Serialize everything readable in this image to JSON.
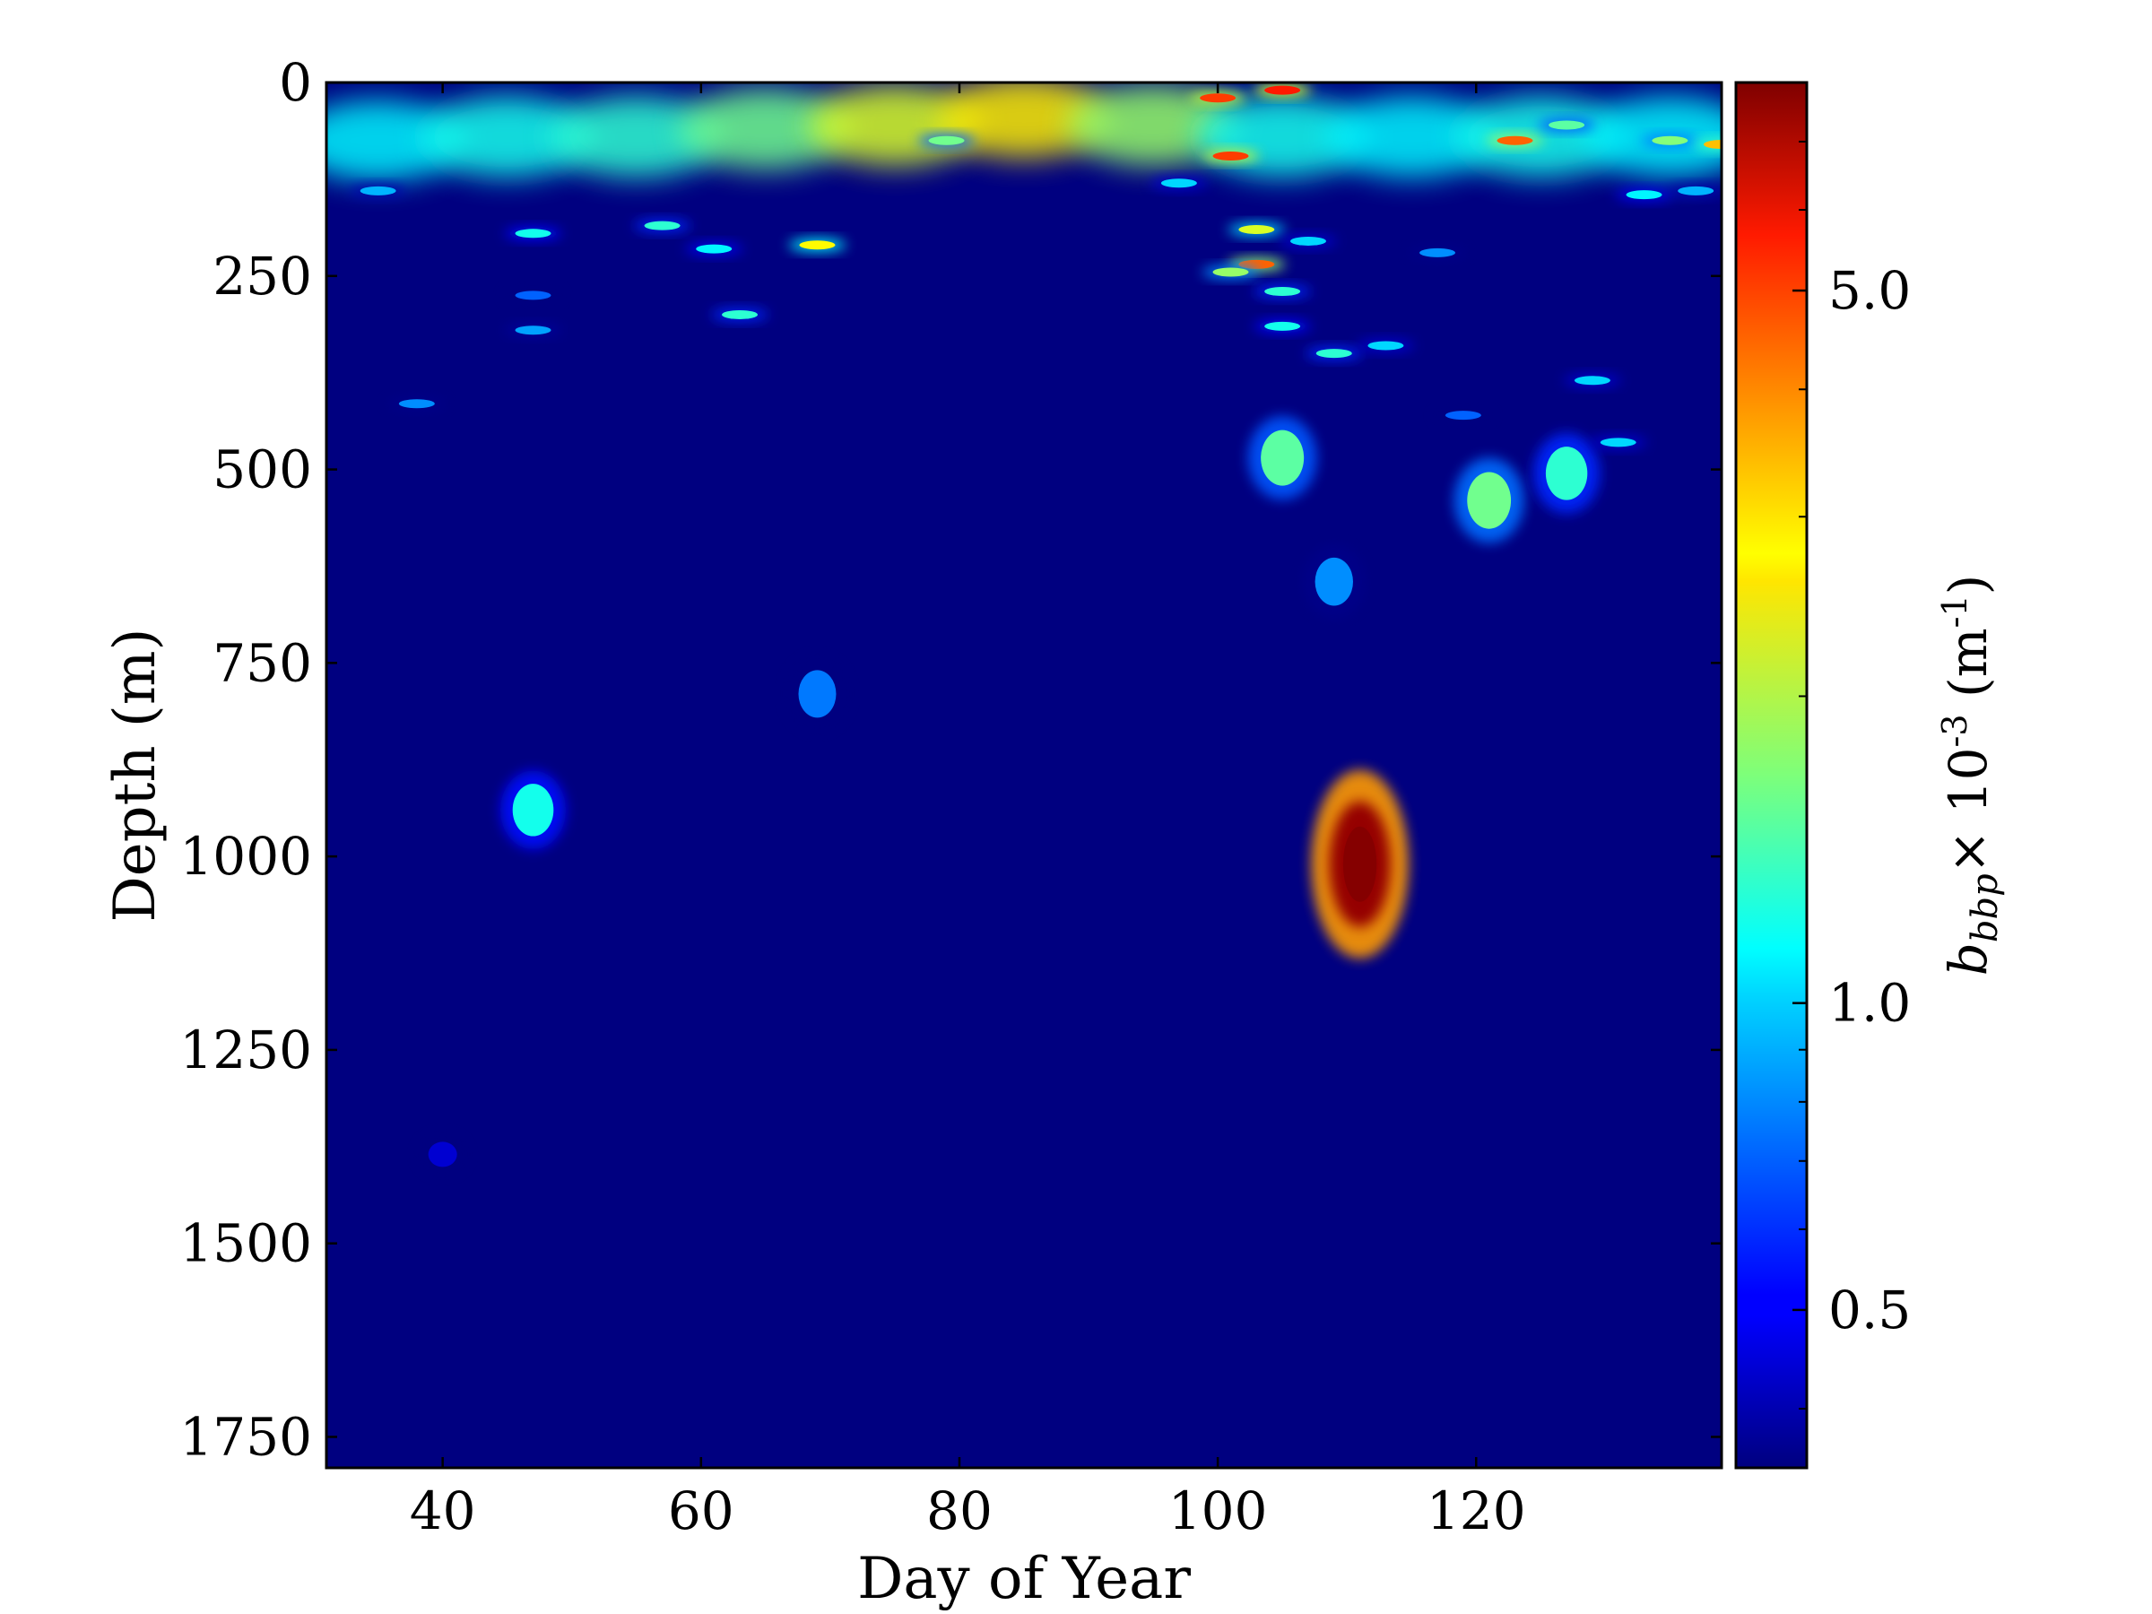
{
  "chart_data": {
    "type": "heatmap",
    "title": "",
    "xlabel": "Day of Year",
    "ylabel": "Depth (m)",
    "xlim": [
      31,
      139
    ],
    "ylim": [
      1790,
      0
    ],
    "y_inverted": true,
    "xticks": [
      40,
      60,
      80,
      100,
      120
    ],
    "xtick_labels": [
      "40",
      "60",
      "80",
      "100",
      "120"
    ],
    "yticks": [
      0,
      250,
      500,
      750,
      1000,
      1250,
      1500,
      1750
    ],
    "ytick_labels": [
      "0",
      "250",
      "500",
      "750",
      "1000",
      "1250",
      "1500",
      "1750"
    ],
    "colormap": "jet",
    "background_value": 0.35,
    "colorbar": {
      "label_parts": {
        "symbol": "b",
        "subscript": "bbp",
        "times": "× 10",
        "exponent": "-3",
        "unit_open": " (m",
        "unit_exponent": "-1",
        "unit_close": ")"
      },
      "scale": "log",
      "range": [
        0.35,
        8.0
      ],
      "ticks": [
        0.5,
        1.0,
        5.0
      ],
      "tick_labels": [
        "0.5",
        "1.0",
        "5.0"
      ],
      "minor_ticks": [
        0.4,
        0.6,
        0.7,
        0.8,
        0.9,
        2,
        3,
        4,
        6,
        7,
        8
      ]
    },
    "surface_layer": [
      {
        "day": 35,
        "depth": 75,
        "value": 1.1
      },
      {
        "day": 45,
        "depth": 70,
        "value": 1.2
      },
      {
        "day": 55,
        "depth": 70,
        "value": 1.3
      },
      {
        "day": 65,
        "depth": 60,
        "value": 1.6
      },
      {
        "day": 75,
        "depth": 55,
        "value": 2.2
      },
      {
        "day": 85,
        "depth": 45,
        "value": 2.6
      },
      {
        "day": 95,
        "depth": 55,
        "value": 1.8
      },
      {
        "day": 105,
        "depth": 70,
        "value": 1.2
      },
      {
        "day": 115,
        "depth": 70,
        "value": 1.1
      },
      {
        "day": 125,
        "depth": 70,
        "value": 1.2
      },
      {
        "day": 135,
        "depth": 70,
        "value": 1.1
      }
    ],
    "patches": [
      {
        "day": 111,
        "depth": 1010,
        "value": 7.5
      },
      {
        "day": 121,
        "depth": 540,
        "value": 1.6
      },
      {
        "day": 127,
        "depth": 505,
        "value": 1.3
      },
      {
        "day": 109,
        "depth": 645,
        "value": 0.8
      },
      {
        "day": 69,
        "depth": 790,
        "value": 0.75
      },
      {
        "day": 47,
        "depth": 940,
        "value": 1.2
      },
      {
        "day": 40,
        "depth": 1385,
        "value": 0.45
      },
      {
        "day": 105,
        "depth": 10,
        "value": 5.0
      },
      {
        "day": 100,
        "depth": 20,
        "value": 4.5
      },
      {
        "day": 101,
        "depth": 95,
        "value": 4.5
      },
      {
        "day": 123,
        "depth": 75,
        "value": 4.0
      },
      {
        "day": 103,
        "depth": 235,
        "value": 4.0
      },
      {
        "day": 69,
        "depth": 210,
        "value": 2.5
      },
      {
        "day": 103,
        "depth": 190,
        "value": 2.2
      },
      {
        "day": 57,
        "depth": 185,
        "value": 1.3
      },
      {
        "day": 47,
        "depth": 195,
        "value": 1.2
      },
      {
        "day": 61,
        "depth": 215,
        "value": 1.1
      },
      {
        "day": 63,
        "depth": 300,
        "value": 1.3
      },
      {
        "day": 101,
        "depth": 245,
        "value": 1.8
      },
      {
        "day": 105,
        "depth": 270,
        "value": 1.3
      },
      {
        "day": 105,
        "depth": 315,
        "value": 1.2
      },
      {
        "day": 109,
        "depth": 350,
        "value": 1.3
      },
      {
        "day": 113,
        "depth": 340,
        "value": 1.0
      },
      {
        "day": 105,
        "depth": 485,
        "value": 1.5
      },
      {
        "day": 129,
        "depth": 385,
        "value": 1.0
      },
      {
        "day": 131,
        "depth": 465,
        "value": 1.0
      },
      {
        "day": 119,
        "depth": 430,
        "value": 0.7
      },
      {
        "day": 38,
        "depth": 415,
        "value": 0.8
      },
      {
        "day": 47,
        "depth": 320,
        "value": 0.85
      },
      {
        "day": 47,
        "depth": 275,
        "value": 0.7
      },
      {
        "day": 35,
        "depth": 140,
        "value": 0.9
      },
      {
        "day": 79,
        "depth": 75,
        "value": 1.6
      },
      {
        "day": 97,
        "depth": 130,
        "value": 1.0
      },
      {
        "day": 107,
        "depth": 205,
        "value": 1.0
      },
      {
        "day": 117,
        "depth": 220,
        "value": 0.8
      },
      {
        "day": 133,
        "depth": 145,
        "value": 1.1
      },
      {
        "day": 137,
        "depth": 140,
        "value": 0.9
      },
      {
        "day": 127,
        "depth": 55,
        "value": 1.5
      },
      {
        "day": 135,
        "depth": 75,
        "value": 1.7
      },
      {
        "day": 139,
        "depth": 80,
        "value": 3.0
      }
    ]
  }
}
